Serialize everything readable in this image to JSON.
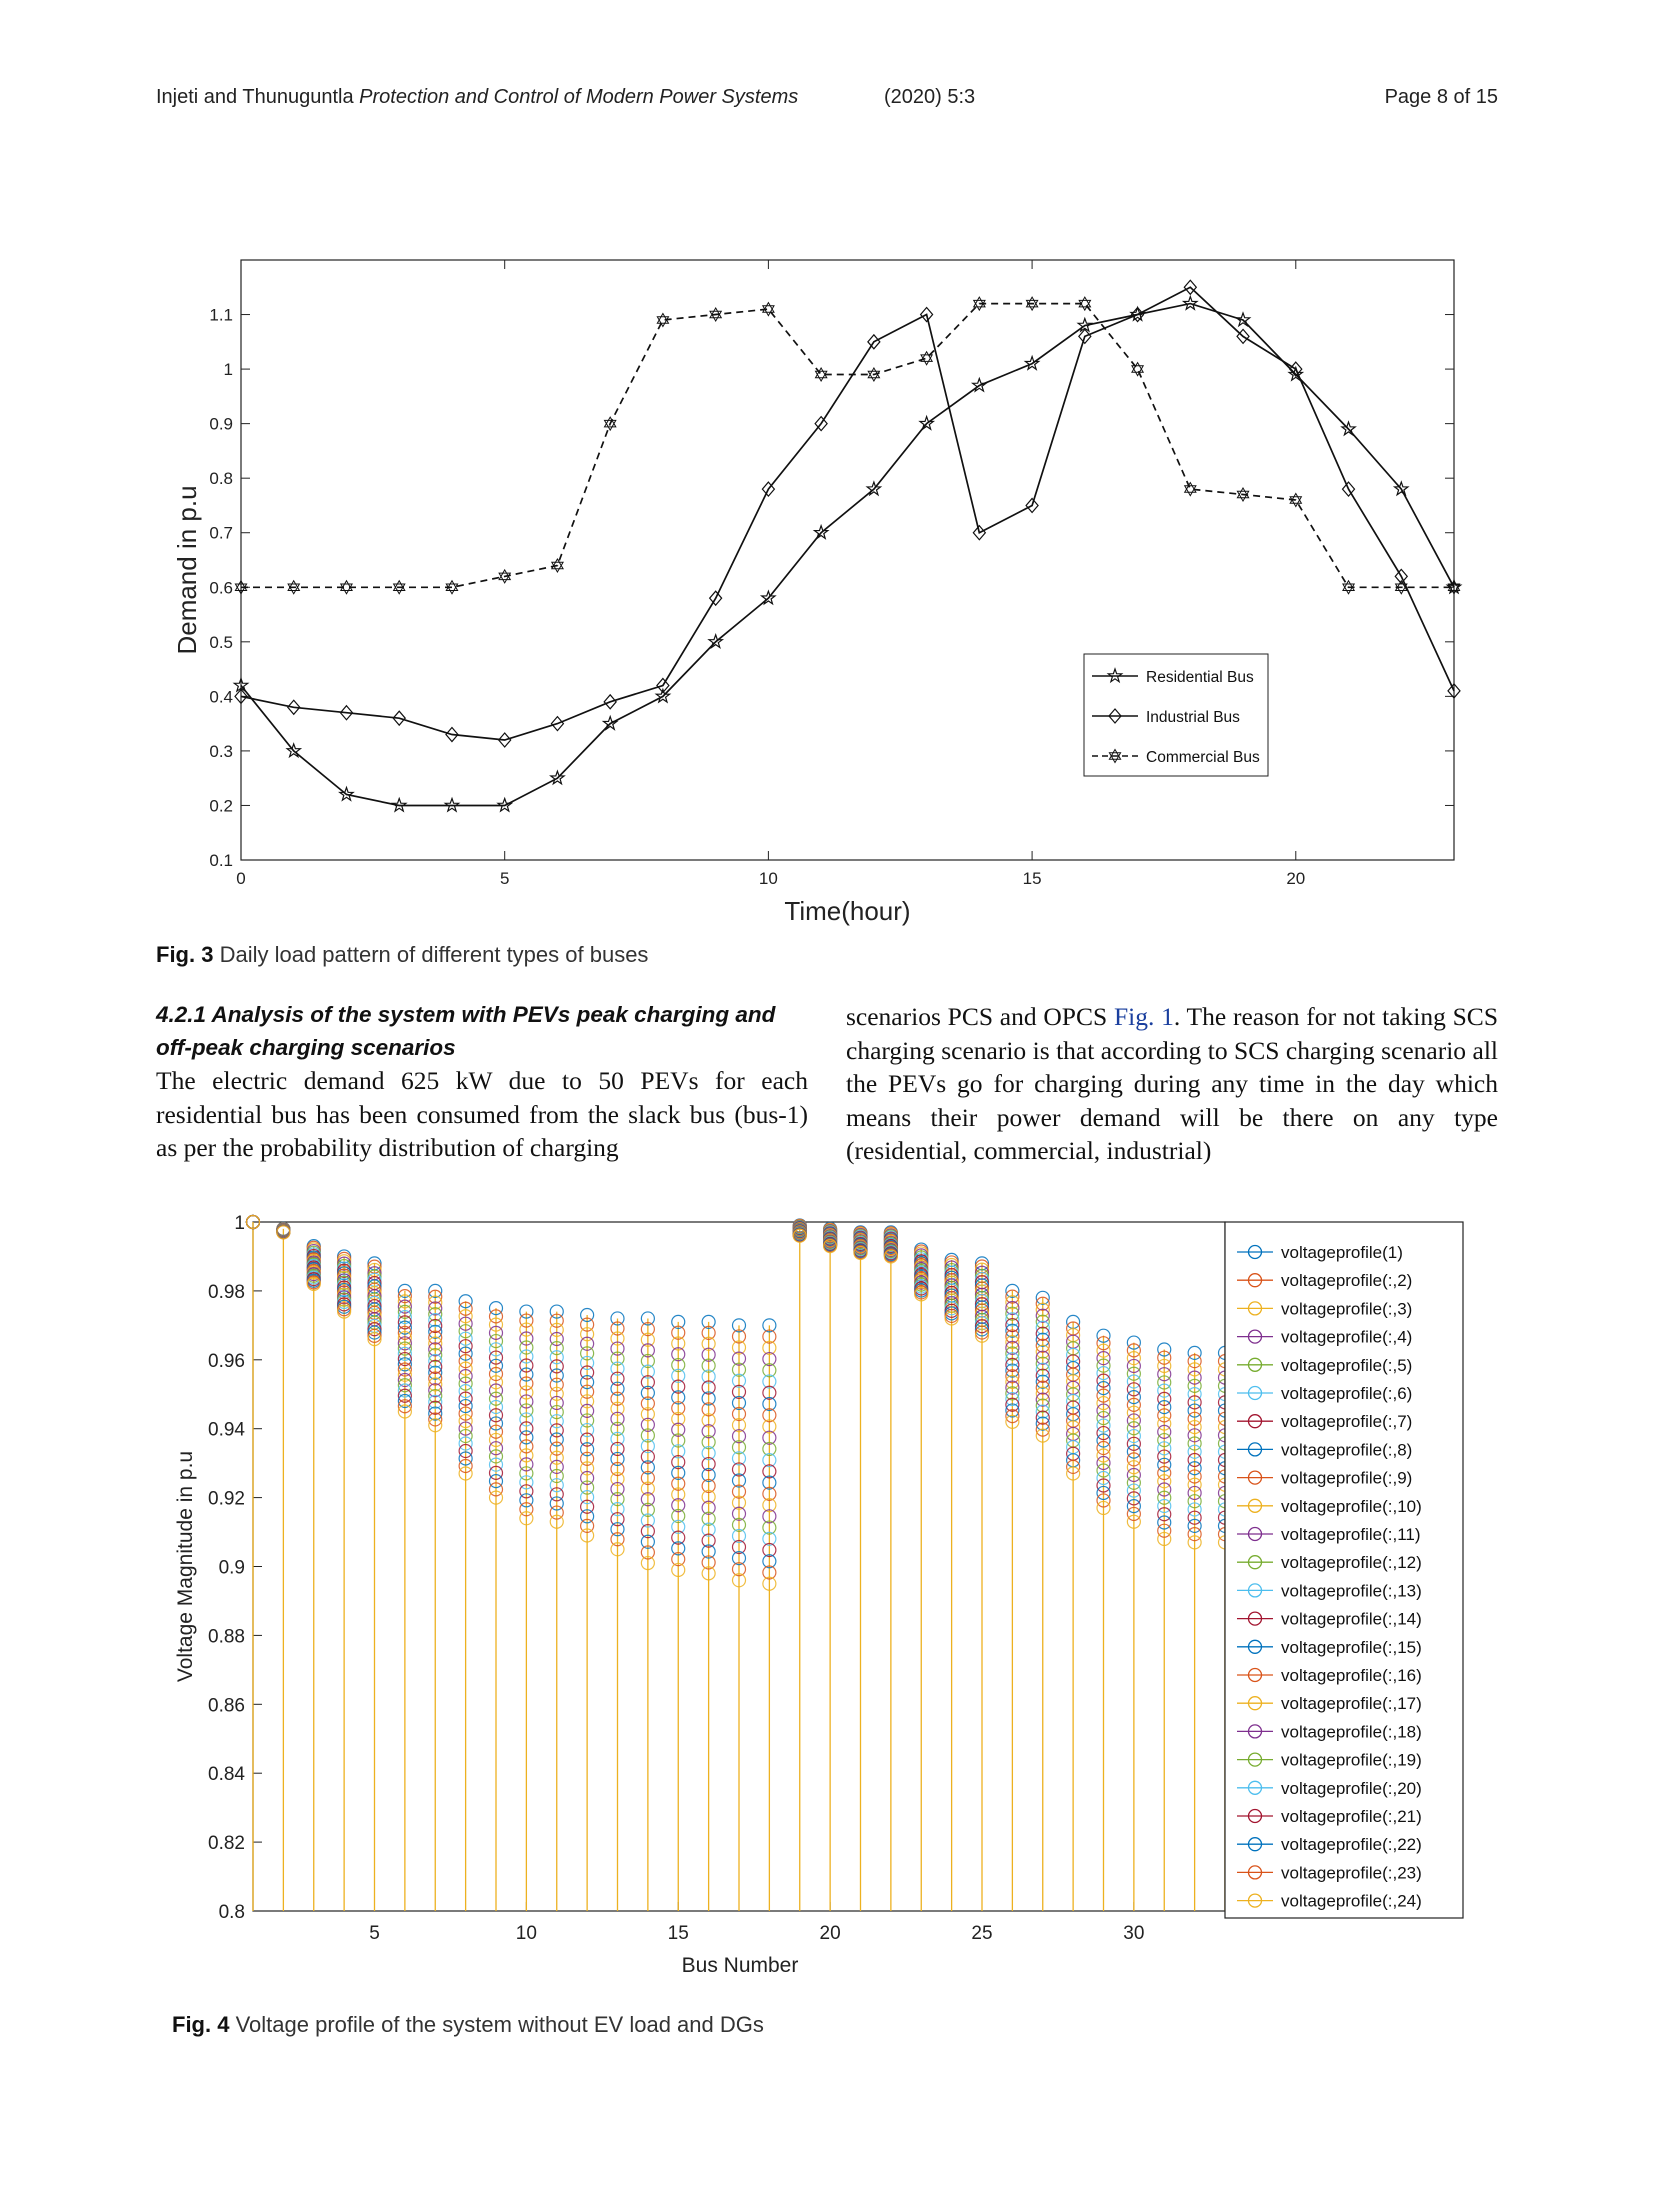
{
  "header": {
    "authors": "Injeti and Thunuguntla",
    "journal": "Protection and Control of Modern Power Systems",
    "year_vol": "(2020) 5:3",
    "page": "Page 8 of 15"
  },
  "figure3": {
    "caption_label": "Fig. 3",
    "caption_text": "Daily load pattern of different types of buses"
  },
  "figure4": {
    "caption_label": "Fig. 4",
    "caption_text": "Voltage profile of the system without EV load and DGs"
  },
  "section": {
    "heading": "4.2.1 Analysis of the system with PEVs peak charging and off-peak charging scenarios",
    "left_text": "The electric demand 625 kW due to 50 PEVs for each residential bus has been consumed from the slack bus (bus-1) as per the probability distribution of charging",
    "right_text_1": "scenarios PCS and OPCS ",
    "right_figref": "Fig. 1",
    "right_text_2": ". The reason for not taking SCS charging scenario is that according to SCS charging scenario all the PEVs go for charging during any time in the day which means their power demand will be there on any type (residential, commercial, industrial)"
  },
  "chart_data": [
    {
      "type": "line",
      "title": "",
      "xlabel": "Time(hour)",
      "ylabel": "Demand in p.u",
      "xlim": [
        0,
        23
      ],
      "ylim": [
        0.1,
        1.2
      ],
      "xticks": [
        0,
        5,
        10,
        15,
        20
      ],
      "yticks": [
        0.1,
        0.2,
        0.3,
        0.4,
        0.5,
        0.6,
        0.7,
        0.8,
        0.9,
        1,
        1.1
      ],
      "grid": false,
      "legend_position": "lower-right",
      "x": [
        0,
        1,
        2,
        3,
        4,
        5,
        6,
        7,
        8,
        9,
        10,
        11,
        12,
        13,
        14,
        15,
        16,
        17,
        18,
        19,
        20,
        21,
        22,
        23
      ],
      "series": [
        {
          "name": "Residential Bus",
          "marker": "star",
          "style": "solid",
          "values": [
            0.42,
            0.3,
            0.22,
            0.2,
            0.2,
            0.2,
            0.25,
            0.35,
            0.4,
            0.5,
            0.58,
            0.7,
            0.78,
            0.9,
            0.97,
            1.01,
            1.08,
            1.1,
            1.12,
            1.09,
            0.99,
            0.89,
            0.78,
            0.6
          ]
        },
        {
          "name": "Industrial Bus",
          "marker": "diamond",
          "style": "solid",
          "values": [
            0.4,
            0.38,
            0.37,
            0.36,
            0.33,
            0.32,
            0.35,
            0.39,
            0.42,
            0.58,
            0.78,
            0.9,
            1.05,
            1.1,
            0.7,
            0.75,
            1.06,
            1.1,
            1.15,
            1.06,
            1.0,
            0.78,
            0.62,
            0.41
          ]
        },
        {
          "name": "Commercial Bus",
          "marker": "hexagram",
          "style": "dashed",
          "values": [
            0.6,
            0.6,
            0.6,
            0.6,
            0.6,
            0.62,
            0.64,
            0.9,
            1.09,
            1.1,
            1.11,
            0.99,
            0.99,
            1.02,
            1.12,
            1.12,
            1.12,
            1.0,
            0.78,
            0.77,
            0.76,
            0.6,
            0.6,
            0.6
          ]
        }
      ]
    },
    {
      "type": "scatter",
      "title": "",
      "xlabel": "Bus Number",
      "ylabel": "Voltage Magnitude in p.u",
      "xlim": [
        1,
        33
      ],
      "ylim": [
        0.8,
        1.0
      ],
      "xticks": [
        5,
        10,
        15,
        20,
        25,
        30
      ],
      "yticks": [
        0.8,
        0.82,
        0.84,
        0.86,
        0.88,
        0.9,
        0.92,
        0.94,
        0.96,
        0.98,
        1
      ],
      "grid": false,
      "legend_position": "right",
      "marker": "circle",
      "stem_baseline": 0.8,
      "x": [
        1,
        2,
        3,
        4,
        5,
        6,
        7,
        8,
        9,
        10,
        11,
        12,
        13,
        14,
        15,
        16,
        17,
        18,
        19,
        20,
        21,
        22,
        23,
        24,
        25,
        26,
        27,
        28,
        29,
        30,
        31,
        32,
        33
      ],
      "v_max": [
        1.0,
        0.998,
        0.993,
        0.99,
        0.988,
        0.98,
        0.98,
        0.977,
        0.975,
        0.974,
        0.974,
        0.973,
        0.972,
        0.972,
        0.971,
        0.971,
        0.97,
        0.97,
        0.999,
        0.998,
        0.997,
        0.997,
        0.992,
        0.989,
        0.988,
        0.98,
        0.978,
        0.971,
        0.967,
        0.965,
        0.963,
        0.962,
        0.962
      ],
      "v_min": [
        1.0,
        0.997,
        0.982,
        0.974,
        0.966,
        0.945,
        0.941,
        0.927,
        0.92,
        0.914,
        0.913,
        0.909,
        0.905,
        0.901,
        0.899,
        0.898,
        0.896,
        0.895,
        0.996,
        0.993,
        0.991,
        0.99,
        0.979,
        0.972,
        0.967,
        0.942,
        0.938,
        0.927,
        0.917,
        0.913,
        0.908,
        0.907,
        0.907
      ],
      "series_names": [
        "voltageprofile(1)",
        "voltageprofile(:,2)",
        "voltageprofile(:,3)",
        "voltageprofile(:,4)",
        "voltageprofile(:,5)",
        "voltageprofile(:,6)",
        "voltageprofile(:,7)",
        "voltageprofile(:,8)",
        "voltageprofile(:,9)",
        "voltageprofile(:,10)",
        "voltageprofile(:,11)",
        "voltageprofile(:,12)",
        "voltageprofile(:,13)",
        "voltageprofile(:,14)",
        "voltageprofile(:,15)",
        "voltageprofile(:,16)",
        "voltageprofile(:,17)",
        "voltageprofile(:,18)",
        "voltageprofile(:,19)",
        "voltageprofile(:,20)",
        "voltageprofile(:,21)",
        "voltageprofile(:,22)",
        "voltageprofile(:,23)",
        "voltageprofile(:,24)"
      ],
      "series_colors": [
        "#0072BD",
        "#D95319",
        "#EDB120",
        "#7E2F8E",
        "#77AC30",
        "#4DBEEE",
        "#A2142F",
        "#0072BD",
        "#D95319",
        "#EDB120",
        "#7E2F8E",
        "#77AC30",
        "#4DBEEE",
        "#A2142F",
        "#0072BD",
        "#D95319",
        "#EDB120",
        "#7E2F8E",
        "#77AC30",
        "#4DBEEE",
        "#A2142F",
        "#0072BD",
        "#D95319",
        "#EDB120"
      ]
    }
  ]
}
